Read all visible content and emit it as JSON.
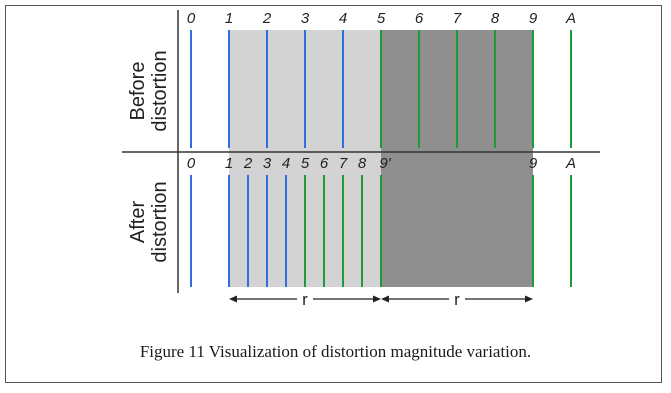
{
  "diagram": {
    "row_labels": {
      "before_line1": "Before",
      "before_line2": "distortion",
      "after_line1": "After",
      "after_line2": "distortion"
    },
    "before_ticks": [
      "0",
      "1",
      "2",
      "3",
      "4",
      "5",
      "6",
      "7",
      "8",
      "9",
      "A"
    ],
    "after_ticks": [
      "0",
      "1",
      "2",
      "3",
      "4",
      "5",
      "6",
      "7",
      "8",
      "9'",
      "9",
      "A"
    ],
    "span_label_left": "r",
    "span_label_right": "r",
    "colors": {
      "blue_line": "#2f6fdc",
      "green_line": "#1e9a3a",
      "light_region": "#d3d3d3",
      "dark_region": "#8f8f8f",
      "axis": "#333333"
    }
  },
  "caption": "Figure 11 Visualization of distortion magnitude variation."
}
